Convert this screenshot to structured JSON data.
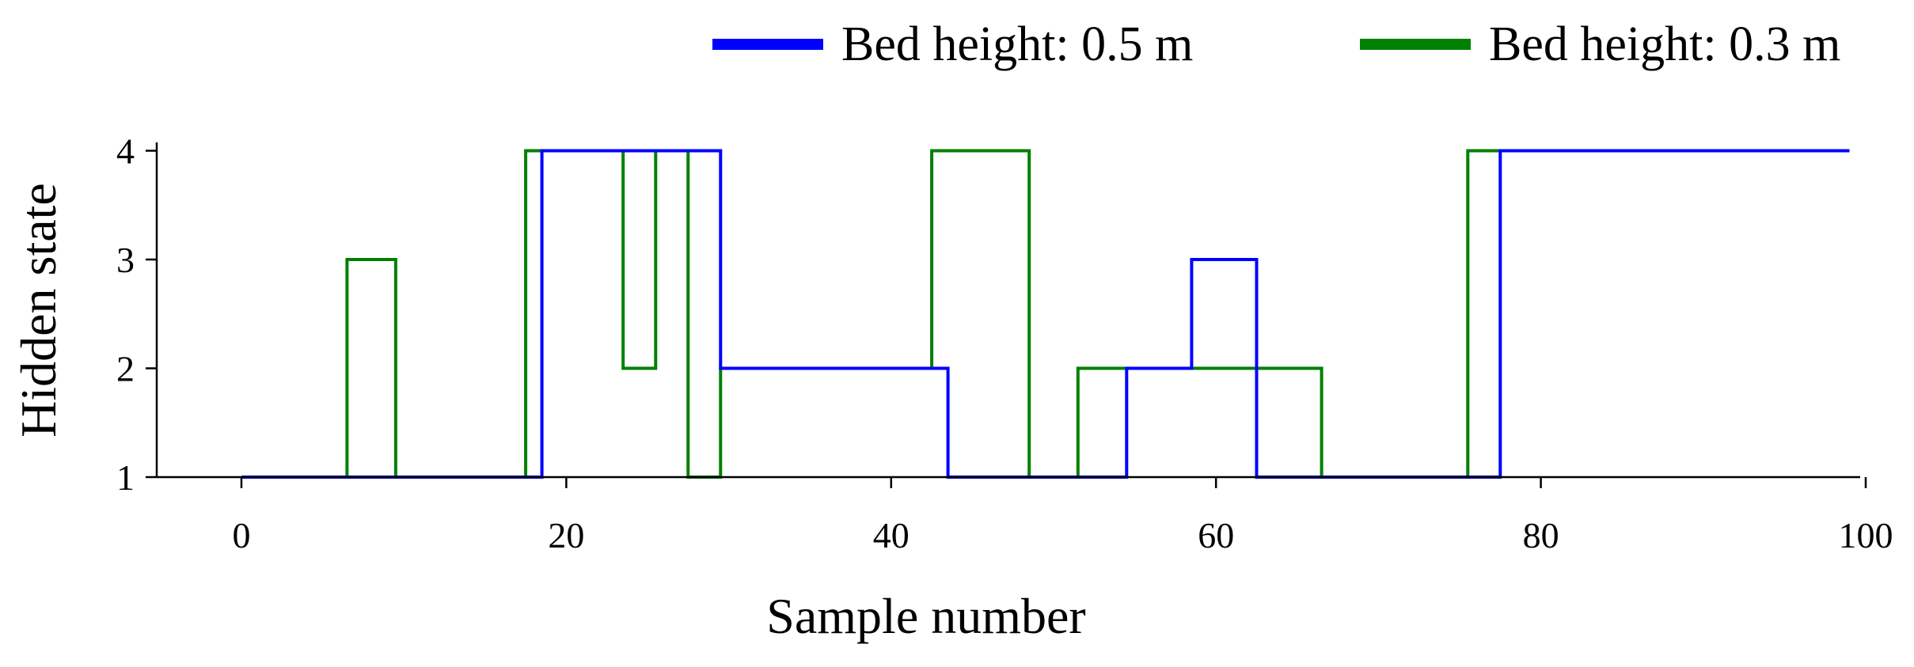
{
  "chart_data": {
    "type": "line",
    "step": true,
    "title": "",
    "xlabel": "Sample number",
    "ylabel": "Hidden state",
    "xlim": [
      -5,
      101
    ],
    "ylim": [
      1,
      4
    ],
    "xticks": [
      0,
      20,
      40,
      60,
      80,
      100
    ],
    "yticks": [
      1,
      2,
      3,
      4
    ],
    "grid": false,
    "legend_position": "top-right",
    "series": [
      {
        "name": "Bed height: 0.5 m",
        "color": "#0000ff",
        "x": [
          0,
          18.5,
          18.5,
          29.5,
          29.5,
          43.5,
          43.5,
          54.5,
          54.5,
          58.5,
          58.5,
          62.5,
          62.5,
          77.5,
          77.5,
          99
        ],
        "y": [
          1,
          1,
          4,
          4,
          2,
          2,
          1,
          1,
          2,
          2,
          3,
          3,
          1,
          1,
          4,
          4
        ]
      },
      {
        "name": "Bed height: 0.3 m",
        "color": "#008000",
        "x": [
          0,
          6.5,
          6.5,
          9.5,
          9.5,
          17.5,
          17.5,
          23.5,
          23.5,
          25.5,
          25.5,
          27.5,
          27.5,
          29.5,
          29.5,
          42.5,
          42.5,
          48.5,
          48.5,
          51.5,
          51.5,
          66.5,
          66.5,
          75.5,
          75.5,
          77.5
        ],
        "y": [
          1,
          1,
          3,
          3,
          1,
          1,
          4,
          4,
          2,
          2,
          4,
          4,
          1,
          1,
          2,
          2,
          4,
          4,
          1,
          1,
          2,
          2,
          1,
          1,
          4,
          4
        ]
      }
    ]
  }
}
